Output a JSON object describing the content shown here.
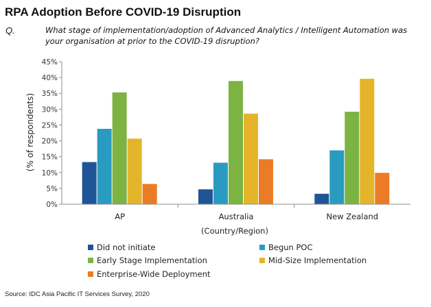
{
  "header": {
    "title": "RPA Adoption Before COVID-19 Disruption",
    "question_label": "Q.",
    "question_text": "What stage of implementation/adoption of Advanced Analytics / Intelligent Automation was your organisation at prior to the COVID-19 disruption?"
  },
  "footer": {
    "source": "Source: IDC Asia Pacific IT Services Survey, 2020"
  },
  "chart_data": {
    "type": "bar",
    "title": "RPA Adoption Before COVID-19 Disruption",
    "xlabel": "(Country/Region)",
    "ylabel": "(% of respondents)",
    "categories": [
      "AP",
      "Australia",
      "New Zealand"
    ],
    "ylim": [
      0,
      45
    ],
    "y_ticks": [
      "0%",
      "5%",
      "10%",
      "15%",
      "20%",
      "25%",
      "30%",
      "35%",
      "40%",
      "45%"
    ],
    "grid": false,
    "legend_position": "bottom",
    "series": [
      {
        "name": "Did not initiate",
        "color": "#1f5596",
        "values": [
          13.3,
          4.7,
          3.3
        ]
      },
      {
        "name": "Begun POC",
        "color": "#2a9bc0",
        "values": [
          23.8,
          13.1,
          17.0
        ]
      },
      {
        "name": "Early Stage Implementation",
        "color": "#7cb342",
        "values": [
          35.3,
          38.9,
          29.2
        ]
      },
      {
        "name": "Mid-Size Implementation",
        "color": "#e4b42a",
        "values": [
          20.7,
          28.6,
          39.6
        ]
      },
      {
        "name": "Enterprise-Wide Deployment",
        "color": "#ec7b26",
        "values": [
          6.4,
          14.2,
          9.9
        ]
      }
    ]
  }
}
